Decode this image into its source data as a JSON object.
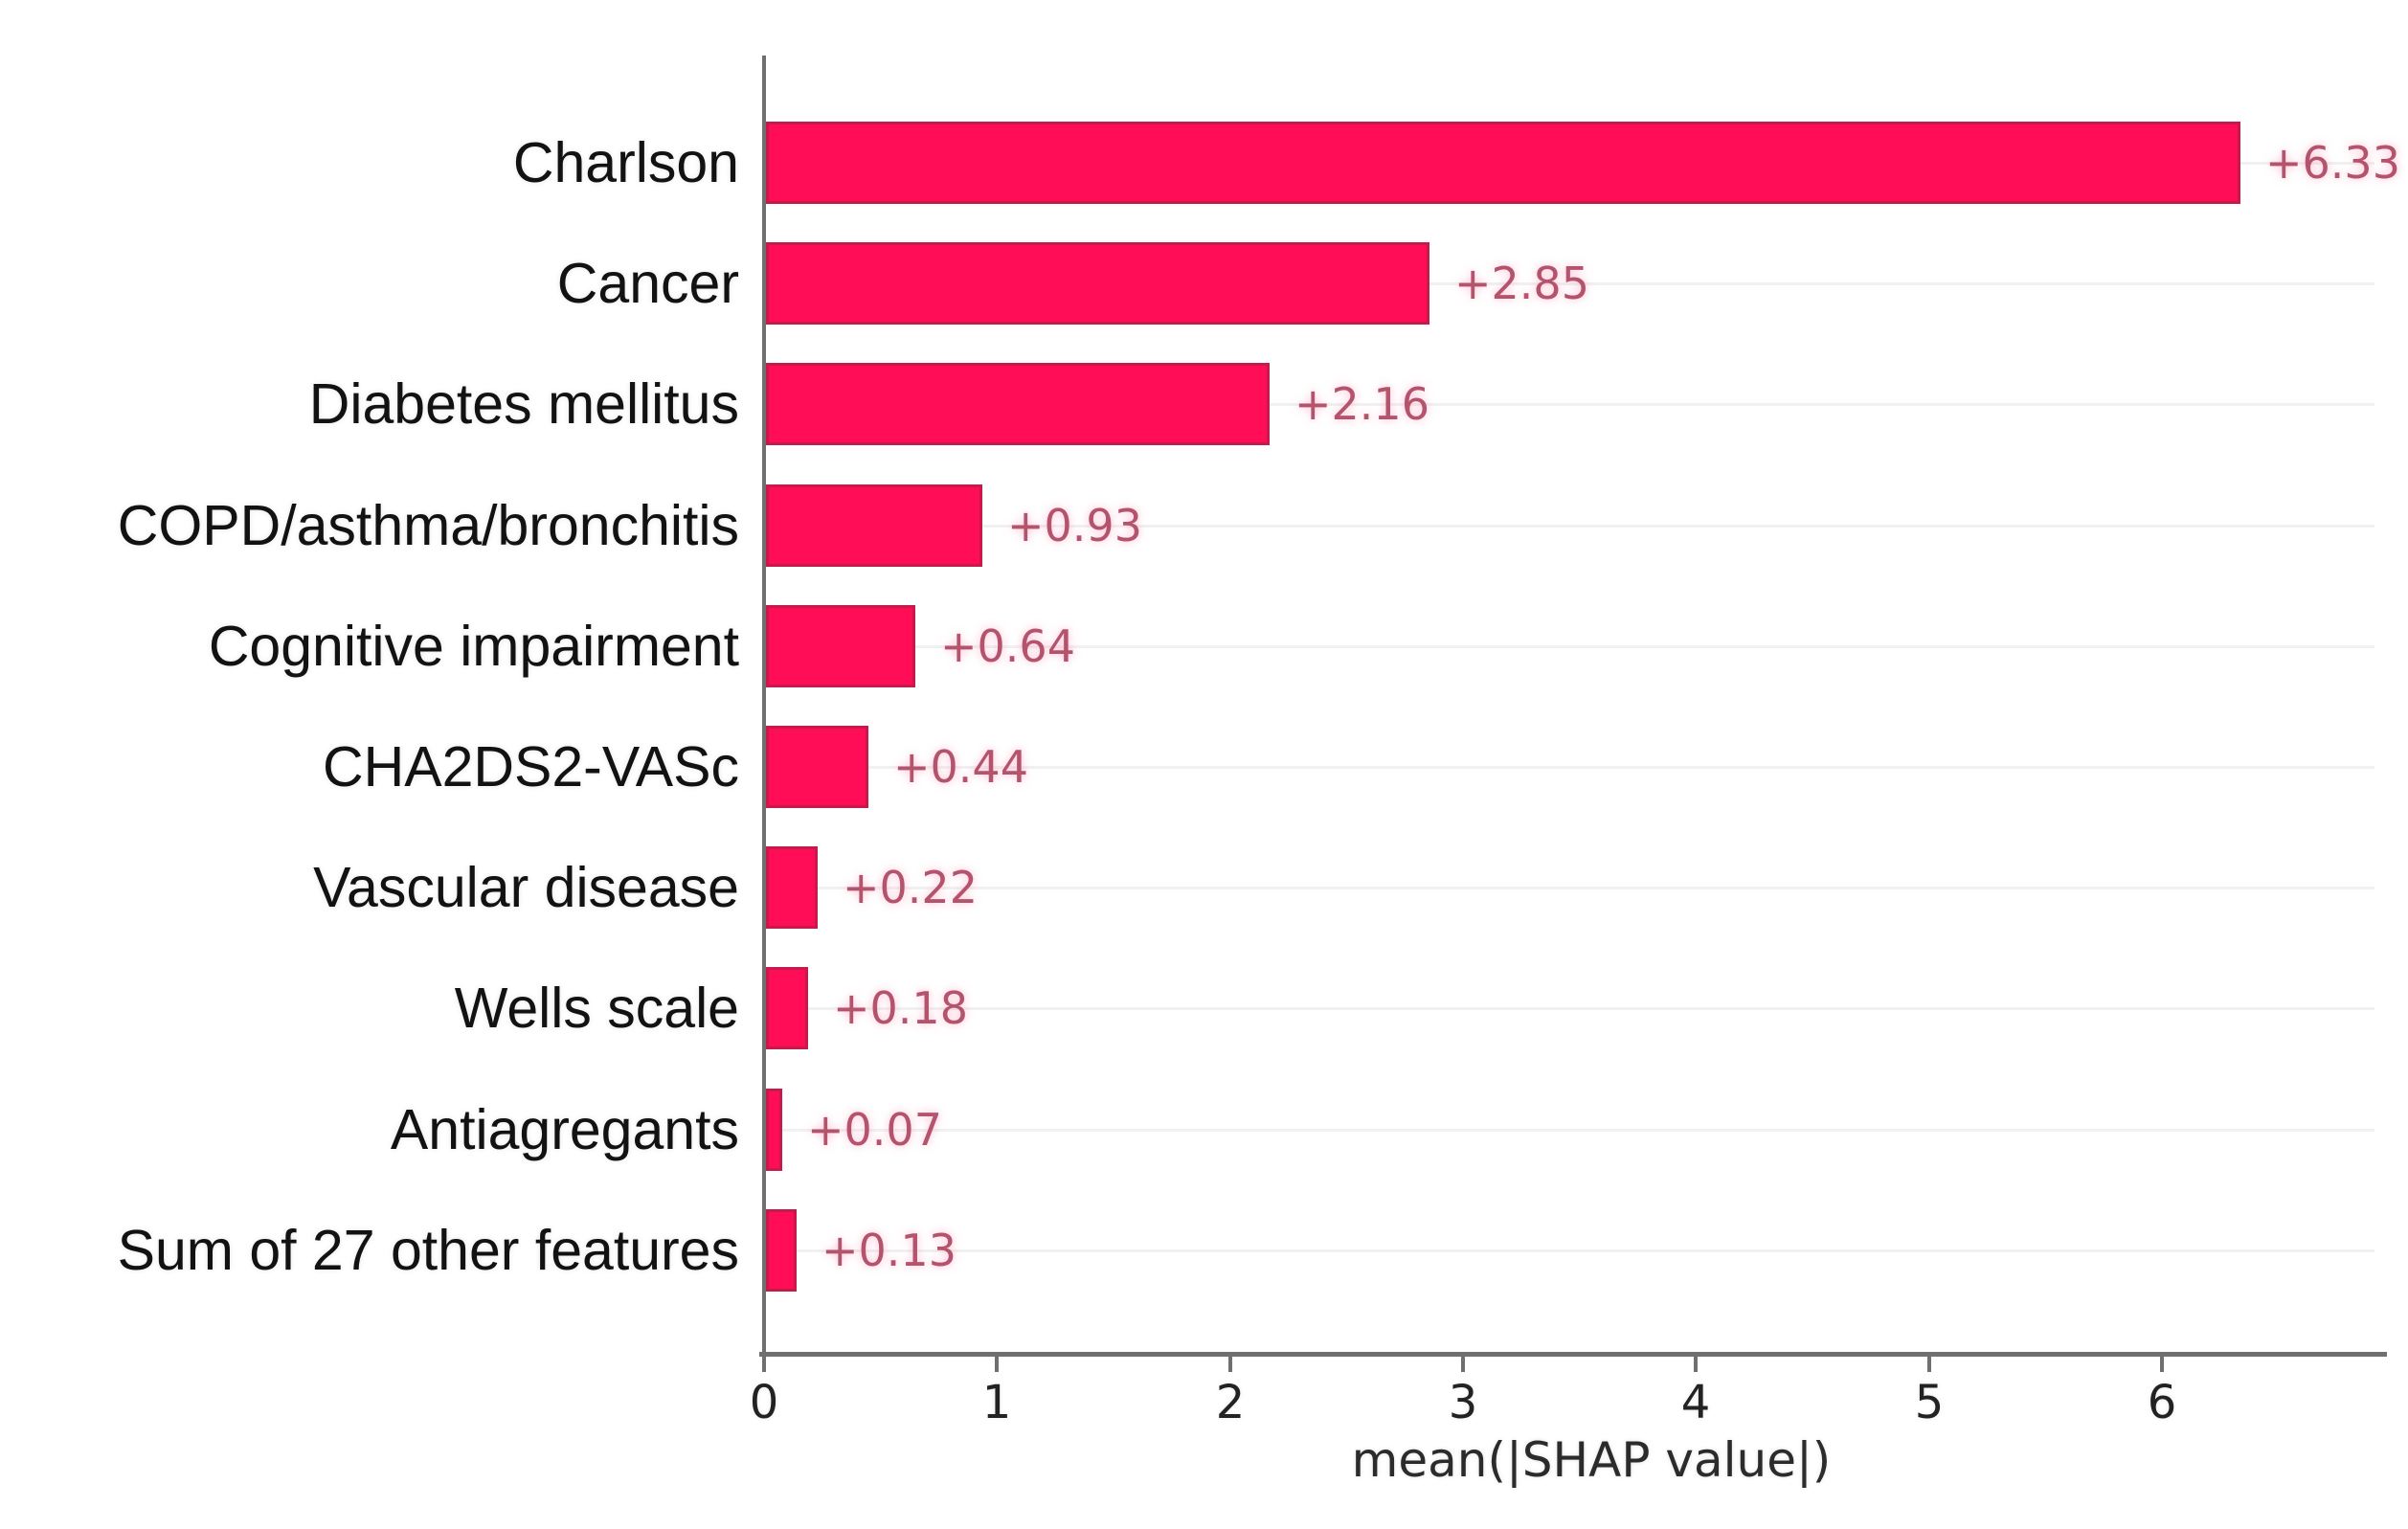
{
  "chart_data": {
    "type": "bar",
    "orientation": "horizontal",
    "title": "",
    "xlabel": "mean(|SHAP value|)",
    "ylabel": "",
    "categories": [
      "Charlson",
      "Cancer",
      "Diabetes mellitus",
      "COPD/asthma/bronchitis",
      "Cognitive impairment",
      "CHA2DS2-VASc",
      "Vascular disease",
      "Wells scale",
      "Antiagregants",
      "Sum of 27 other features"
    ],
    "values": [
      6.33,
      2.85,
      2.16,
      0.93,
      0.64,
      0.44,
      0.22,
      0.18,
      0.07,
      0.13
    ],
    "value_labels": [
      "+6.33",
      "+2.85",
      "+2.16",
      "+0.93",
      "+0.64",
      "+0.44",
      "+0.22",
      "+0.18",
      "+0.07",
      "+0.13"
    ],
    "x_ticks": [
      "0",
      "1",
      "2",
      "3",
      "4",
      "5",
      "6"
    ],
    "xlim": [
      0,
      6.97
    ],
    "legend": "none",
    "grid": "faint horizontal lines at each bar row",
    "bar_color": "#ff0d57",
    "bar_edge_color": "#c81a4a",
    "value_label_color": "#b4546c",
    "axis_color": "#6f6f6f",
    "tick_label_color": "#222222",
    "category_label_color": "#121212"
  }
}
